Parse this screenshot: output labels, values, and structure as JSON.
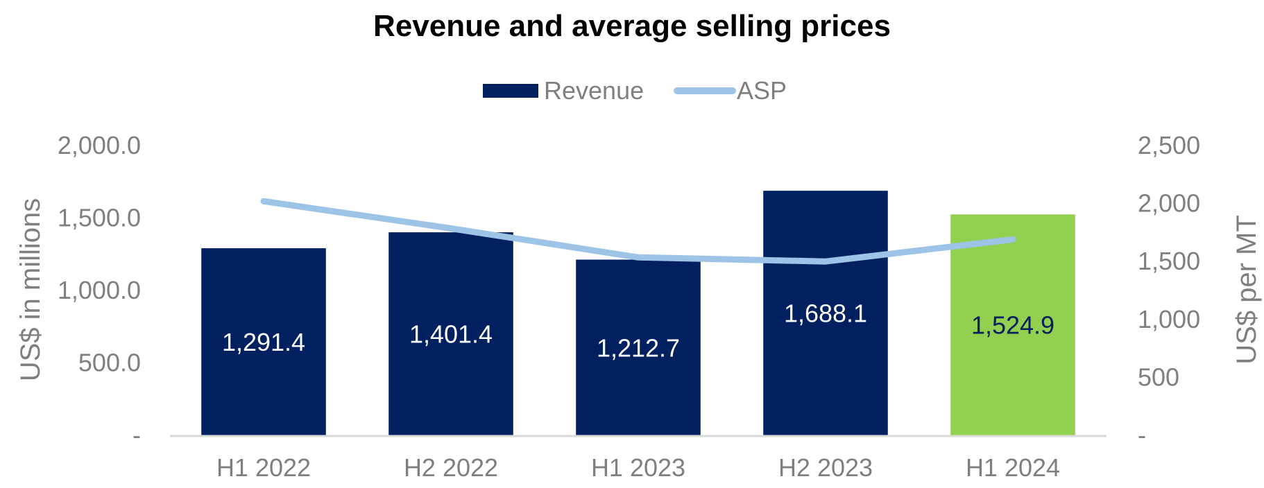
{
  "chart_data": {
    "type": "bar",
    "title": "Revenue and average selling prices",
    "categories": [
      "H1 2022",
      "H2 2022",
      "H1 2023",
      "H2 2023",
      "H1 2024"
    ],
    "series": [
      {
        "name": "Revenue",
        "type": "bar",
        "axis": "left",
        "values": [
          1291.4,
          1401.4,
          1212.7,
          1688.1,
          1524.9
        ],
        "labels": [
          "1,291.4",
          "1,401.4",
          "1,212.7",
          "1,688.1",
          "1,524.9"
        ],
        "color": "#002060",
        "highlight_index": 4,
        "highlight_color": "#92d050",
        "label_color": "#ffffff",
        "highlight_label_color": "#002060"
      },
      {
        "name": "ASP",
        "type": "line",
        "axis": "right",
        "values": [
          2020,
          1785,
          1535,
          1500,
          1690
        ],
        "color": "#9dc3e6"
      }
    ],
    "ylabel": "US$ in millions",
    "y2label": "US$ per MT",
    "ylim": [
      0,
      2000
    ],
    "y2lim": [
      0,
      2500
    ],
    "yticks": [
      0,
      500,
      1000,
      1500,
      2000
    ],
    "ytick_labels": [
      "-",
      "500.0",
      "1,000.0",
      "1,500.0",
      "2,000.0"
    ],
    "y2ticks": [
      0,
      500,
      1000,
      1500,
      2000,
      2500
    ],
    "y2tick_labels": [
      "-",
      "500",
      "1,000",
      "1,500",
      "2,000",
      "2,500"
    ],
    "grid": false,
    "legend_position": "top-center",
    "axis_color": "#d9d9d9"
  }
}
